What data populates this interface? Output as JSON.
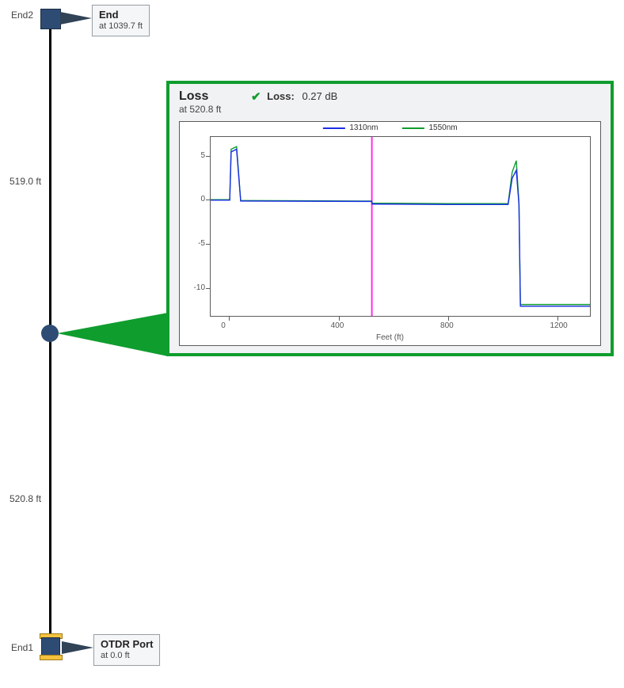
{
  "nodes": {
    "end2": {
      "label": "End2",
      "box_title": "End",
      "box_sub": "at 1039.7 ft"
    },
    "end1": {
      "label": "End1",
      "box_title": "OTDR Port",
      "box_sub": "at 0.0 ft"
    }
  },
  "segments": {
    "upper": "519.0 ft",
    "lower": "520.8 ft"
  },
  "chart": {
    "title": "Loss",
    "sub": "at 520.8 ft",
    "loss_label": "Loss:",
    "loss_value": "0.27 dB",
    "x_axis_label": "Feet (ft)",
    "x_ticks": [
      "0",
      "400",
      "800",
      "1200"
    ],
    "x_tick_values": [
      0,
      400,
      800,
      1200
    ],
    "y_ticks": [
      "5",
      "0",
      "-5",
      "-10"
    ],
    "y_tick_values": [
      5,
      0,
      -5,
      -10
    ],
    "legend": [
      {
        "label": "1310nm",
        "color": "#1a2ee6"
      },
      {
        "label": "1550nm",
        "color": "#0f9d2e"
      }
    ],
    "x_range": [
      -70,
      1320
    ],
    "y_range": [
      -13.2,
      7.2
    ],
    "marker_x": 520.8,
    "marker_color": "#ff2ee6",
    "trace_1310_color": "#1a2ee6",
    "trace_1550_color": "#0f9d2e",
    "trace_1310": [
      [
        -70,
        0.0
      ],
      [
        -5,
        0.0
      ],
      [
        0,
        0.0
      ],
      [
        5,
        5.5
      ],
      [
        25,
        5.8
      ],
      [
        40,
        -0.1
      ],
      [
        60,
        -0.1
      ],
      [
        480,
        -0.15
      ],
      [
        520,
        -0.15
      ],
      [
        522,
        -0.45
      ],
      [
        540,
        -0.45
      ],
      [
        800,
        -0.5
      ],
      [
        1020,
        -0.5
      ],
      [
        1035,
        2.5
      ],
      [
        1050,
        3.4
      ],
      [
        1060,
        -0.5
      ],
      [
        1065,
        -12.1
      ],
      [
        1320,
        -12.1
      ]
    ],
    "trace_1550": [
      [
        -70,
        0.05
      ],
      [
        -5,
        0.05
      ],
      [
        0,
        0.05
      ],
      [
        5,
        5.8
      ],
      [
        25,
        6.1
      ],
      [
        40,
        -0.05
      ],
      [
        60,
        -0.05
      ],
      [
        480,
        -0.1
      ],
      [
        520,
        -0.1
      ],
      [
        522,
        -0.35
      ],
      [
        540,
        -0.35
      ],
      [
        800,
        -0.4
      ],
      [
        1020,
        -0.4
      ],
      [
        1035,
        3.2
      ],
      [
        1050,
        4.5
      ],
      [
        1060,
        -0.4
      ],
      [
        1065,
        -11.9
      ],
      [
        1320,
        -11.9
      ]
    ]
  },
  "colors": {
    "node_fill": "#2e4b73",
    "panel_border": "#0f9d2e",
    "plot_border": "#5b5b5b",
    "label_box_bg": "#f5f6f7",
    "label_box_border": "#9aa0a6"
  }
}
